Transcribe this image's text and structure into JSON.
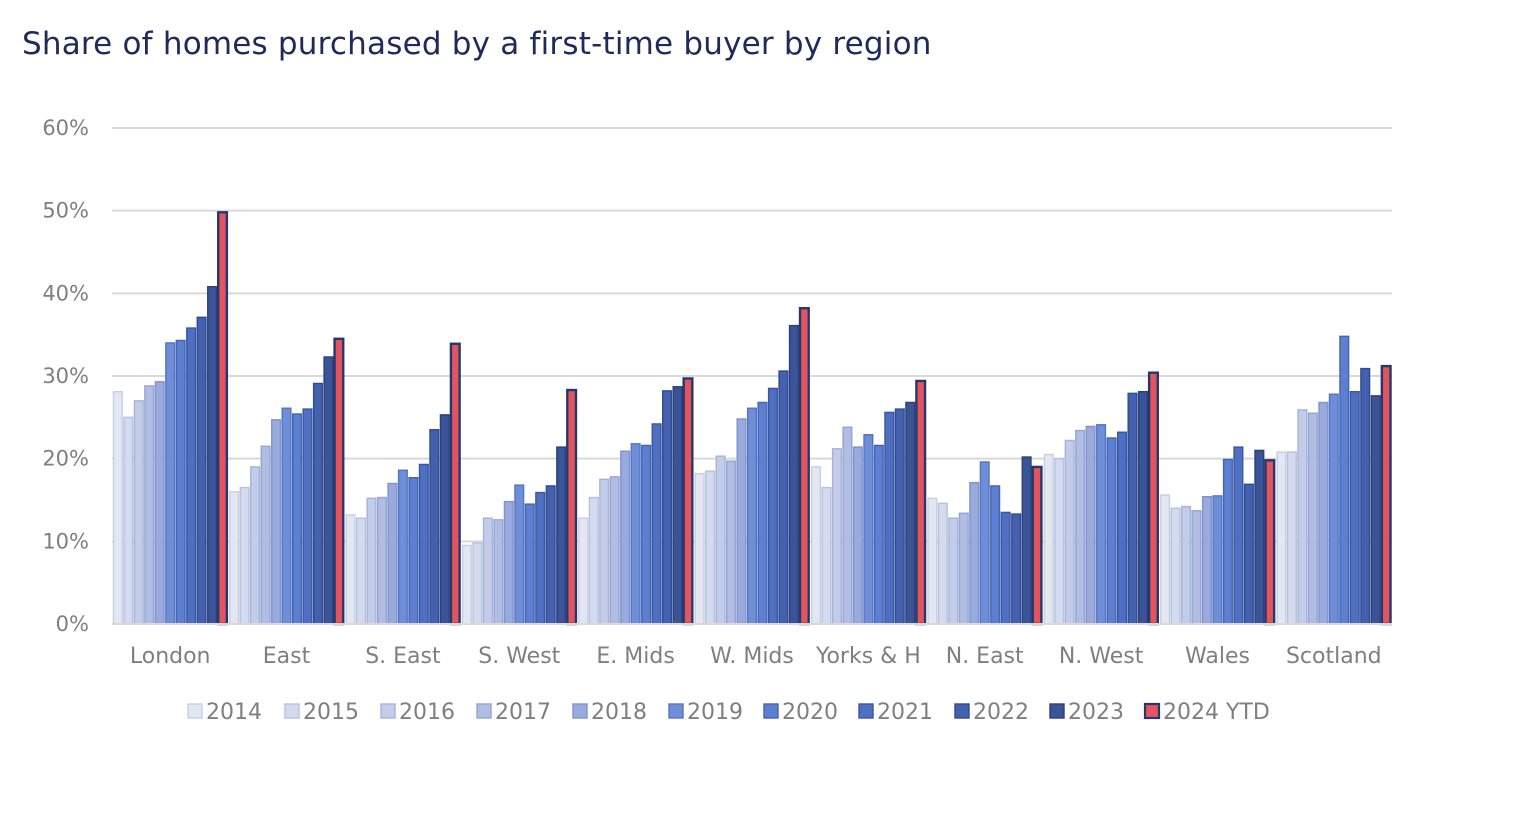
{
  "chart_data": {
    "type": "bar",
    "title": "Share of homes purchased by a first-time buyer by region",
    "xlabel": "",
    "ylabel": "",
    "ylim": [
      0,
      60
    ],
    "yticks": [
      0,
      10,
      20,
      30,
      40,
      50,
      60
    ],
    "ytick_labels": [
      "0%",
      "10%",
      "20%",
      "30%",
      "40%",
      "50%",
      "60%"
    ],
    "grid": true,
    "legend_position": "bottom",
    "categories": [
      "London",
      "East",
      "S. East",
      "S. West",
      "E. Mids",
      "W. Mids",
      "Yorks & H",
      "N. East",
      "N. West",
      "Wales",
      "Scotland"
    ],
    "series": [
      {
        "name": "2014",
        "fill": "#e3e7f2",
        "stroke": "#c7cfe4",
        "values": [
          28.1,
          16.0,
          13.2,
          9.5,
          12.8,
          18.2,
          19.0,
          15.2,
          20.5,
          15.6,
          20.8
        ]
      },
      {
        "name": "2015",
        "fill": "#d5dbee",
        "stroke": "#b6c1df",
        "values": [
          25.0,
          16.5,
          12.8,
          9.8,
          15.3,
          18.5,
          16.5,
          14.6,
          20.0,
          14.0,
          20.8
        ]
      },
      {
        "name": "2016",
        "fill": "#c3cce8",
        "stroke": "#a6b3d9",
        "values": [
          27.0,
          19.0,
          15.2,
          12.8,
          17.5,
          20.3,
          21.2,
          12.8,
          22.2,
          14.2,
          25.9
        ]
      },
      {
        "name": "2017",
        "fill": "#b1bde2",
        "stroke": "#95a5d3",
        "values": [
          28.8,
          21.5,
          15.3,
          12.6,
          17.8,
          19.7,
          23.8,
          13.4,
          23.4,
          13.7,
          25.5
        ]
      },
      {
        "name": "2018",
        "fill": "#9aaadc",
        "stroke": "#7f93cc",
        "values": [
          29.3,
          24.7,
          17.0,
          14.8,
          20.9,
          24.8,
          21.4,
          17.1,
          23.9,
          15.4,
          26.8
        ]
      },
      {
        "name": "2019",
        "fill": "#6e8fd8",
        "stroke": "#5674c4",
        "values": [
          34.0,
          26.1,
          18.6,
          16.8,
          21.8,
          26.1,
          22.9,
          19.6,
          24.1,
          15.5,
          27.8
        ]
      },
      {
        "name": "2020",
        "fill": "#5c7fd0",
        "stroke": "#4563b5",
        "values": [
          34.3,
          25.4,
          17.7,
          14.5,
          21.6,
          26.8,
          21.6,
          16.7,
          22.5,
          19.9,
          34.8
        ]
      },
      {
        "name": "2021",
        "fill": "#4f6fc1",
        "stroke": "#3a55a3",
        "values": [
          35.8,
          26.0,
          19.3,
          15.9,
          24.2,
          28.5,
          25.6,
          13.5,
          23.2,
          21.4,
          28.1
        ]
      },
      {
        "name": "2022",
        "fill": "#4361ae",
        "stroke": "#304a92",
        "values": [
          37.1,
          29.1,
          23.5,
          16.7,
          28.2,
          30.6,
          26.0,
          13.3,
          27.9,
          16.9,
          30.9
        ]
      },
      {
        "name": "2023",
        "fill": "#3a5497",
        "stroke": "#2a3f7c",
        "values": [
          40.8,
          32.3,
          25.3,
          21.4,
          28.7,
          36.1,
          26.8,
          20.2,
          28.1,
          21.0,
          27.6
        ]
      },
      {
        "name": "2024 YTD",
        "fill": "#e2555f",
        "stroke": "#243870",
        "values": [
          49.8,
          34.5,
          33.9,
          28.3,
          29.7,
          38.2,
          29.4,
          19.0,
          30.4,
          19.8,
          31.2
        ]
      }
    ]
  }
}
